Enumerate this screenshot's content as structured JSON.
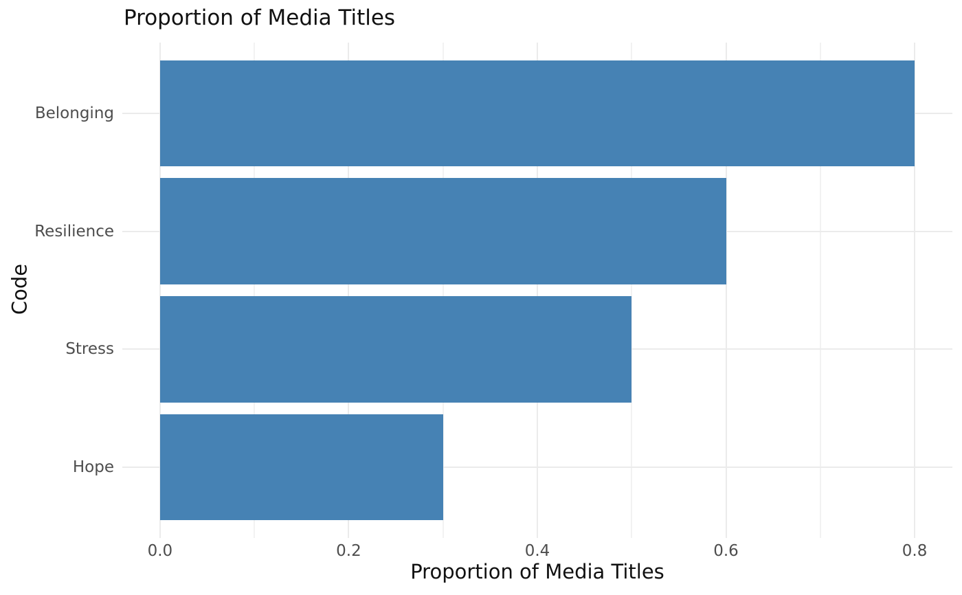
{
  "chart_data": {
    "type": "bar",
    "orientation": "horizontal",
    "title": "Proportion of Media Titles",
    "xlabel": "Proportion of Media Titles",
    "ylabel": "Code",
    "categories": [
      "Belonging",
      "Resilience",
      "Stress",
      "Hope"
    ],
    "values": [
      0.8,
      0.6,
      0.5,
      0.3
    ],
    "xlim": [
      0,
      0.8
    ],
    "x_expand": 0.04,
    "xtick_labels": [
      "0.0",
      "0.2",
      "0.4",
      "0.6",
      "0.8"
    ],
    "xtick_values": [
      0,
      0.2,
      0.4,
      0.6,
      0.8
    ],
    "minor_tick_values": [
      0.1,
      0.3,
      0.5,
      0.7
    ],
    "grid": "major-and-minor-vertical, major-horizontal",
    "legend": "none",
    "bar_width_fraction": 0.9,
    "colors": {
      "bar": "#4682B4",
      "grid_major": "#EBEBEB",
      "grid_minor": "#F2F2F2",
      "axis_text": "#4D4D4D",
      "title": "#111111",
      "axis_title": "#111111",
      "background": "#FFFFFF"
    }
  }
}
